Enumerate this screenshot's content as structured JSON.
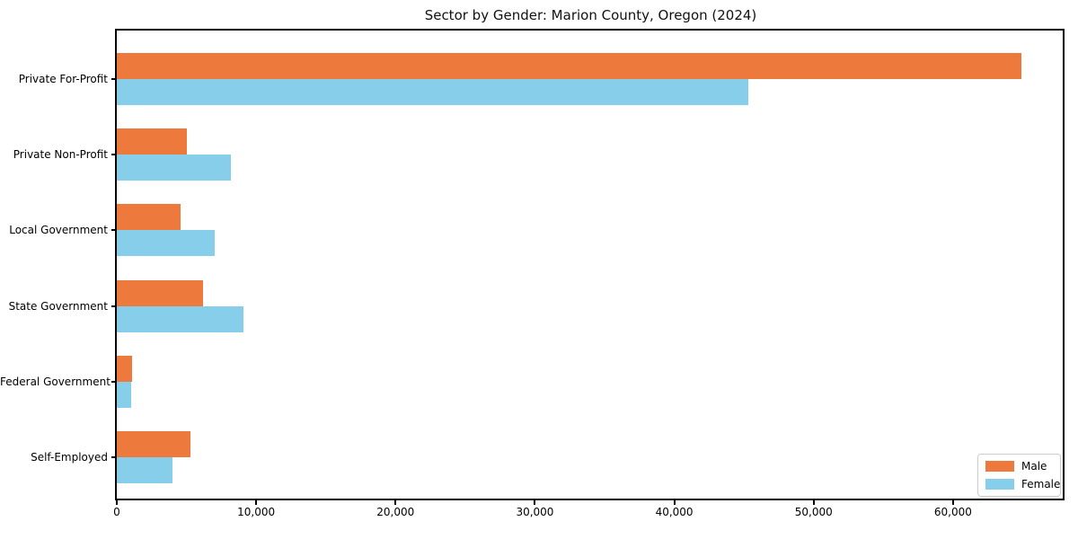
{
  "chart_data": {
    "type": "bar",
    "orientation": "horizontal",
    "title": "Sector by Gender: Marion County, Oregon (2024)",
    "categories": [
      "Private For-Profit",
      "Private Non-Profit",
      "Local Government",
      "State Government",
      "Federal Government",
      "Self-Employed"
    ],
    "series": [
      {
        "name": "Male",
        "color": "#ED7A3C",
        "values": [
          64900,
          5000,
          4600,
          6200,
          1100,
          5300
        ]
      },
      {
        "name": "Female",
        "color": "#87CEEB",
        "values": [
          45300,
          8200,
          7000,
          9100,
          1000,
          4000
        ]
      }
    ],
    "xlabel": "",
    "ylabel": "",
    "xlim": [
      0,
      68000
    ],
    "x_ticks": [
      0,
      10000,
      20000,
      30000,
      40000,
      50000,
      60000
    ],
    "x_tick_labels": [
      "0",
      "10,000",
      "20,000",
      "30,000",
      "40,000",
      "50,000",
      "60,000"
    ],
    "grid": false,
    "legend": {
      "position": "lower right",
      "entries": [
        "Male",
        "Female"
      ]
    },
    "colors": {
      "male": "#ED7A3C",
      "female": "#87CEEB",
      "spine": "#000000",
      "legend_border": "#cccccc"
    }
  }
}
